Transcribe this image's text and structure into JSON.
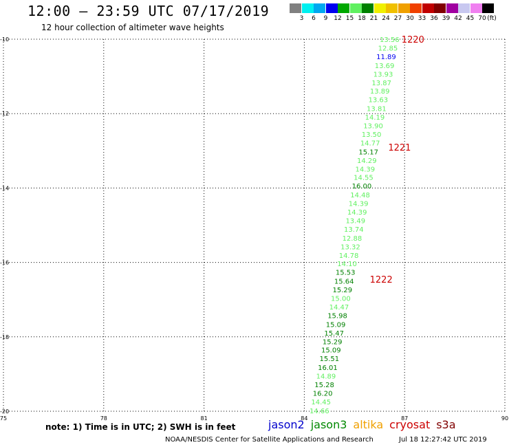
{
  "header": {
    "title": "12:00 – 23:59 UTC 07/17/2019",
    "subtitle": "12 hour collection of altimeter wave heights"
  },
  "scale": {
    "labels": [
      "3",
      "6",
      "9",
      "12",
      "15",
      "18",
      "21",
      "24",
      "27",
      "30",
      "33",
      "36",
      "39",
      "42",
      "45",
      "70"
    ],
    "unit": "(ft)",
    "colors": [
      "#808080",
      "#00f0f0",
      "#00a8f0",
      "#0000f0",
      "#00a800",
      "#60f060",
      "#008000",
      "#f0f000",
      "#f0c000",
      "#f0a000",
      "#f04000",
      "#c00000",
      "#800000",
      "#a000a0",
      "#c8c8f0",
      "#f080f0",
      "#000000"
    ]
  },
  "footer": {
    "note": "note:  1) Time is in UTC; 2) SWH is in feet",
    "legend": [
      {
        "label": "jason2",
        "color": "#0000cc"
      },
      {
        "label": "jason3",
        "color": "#008800"
      },
      {
        "label": "altika",
        "color": "#f0a000"
      },
      {
        "label": "cryosat",
        "color": "#cc0000"
      },
      {
        "label": "s3a",
        "color": "#800000"
      }
    ],
    "credit": "NOAA/NESDIS Center for Satellite Applications and Research",
    "timestamp": "Jul 18 12:27:42 UTC 2019"
  },
  "chart_data": {
    "type": "scatter",
    "title": "12:00 – 23:59 UTC 07/17/2019",
    "subtitle": "12 hour collection of altimeter wave heights",
    "x_axis": {
      "range": [
        75,
        90
      ],
      "ticks": [
        "75",
        "78",
        "81",
        "84",
        "87",
        "90"
      ]
    },
    "y_axis": {
      "range": [
        -20,
        -10
      ],
      "ticks": [
        "-10",
        "-12",
        "-14",
        "-16",
        "-18",
        "-20"
      ]
    },
    "grid": true,
    "series": [
      {
        "name": "jason3",
        "values": [
          {
            "lon": 86.55,
            "lat": -10.0,
            "swh": "13.56",
            "color": "#60f060"
          },
          {
            "lon": 86.5,
            "lat": -10.23,
            "swh": "12.85",
            "color": "#60f060"
          },
          {
            "lon": 86.45,
            "lat": -10.46,
            "swh": "11.89",
            "color": "#0000f0"
          },
          {
            "lon": 86.4,
            "lat": -10.7,
            "swh": "13.69",
            "color": "#60f060"
          },
          {
            "lon": 86.36,
            "lat": -10.93,
            "swh": "13.93",
            "color": "#60f060"
          },
          {
            "lon": 86.31,
            "lat": -11.16,
            "swh": "13.87",
            "color": "#60f060"
          },
          {
            "lon": 86.26,
            "lat": -11.39,
            "swh": "13.89",
            "color": "#60f060"
          },
          {
            "lon": 86.21,
            "lat": -11.62,
            "swh": "13.63",
            "color": "#60f060"
          },
          {
            "lon": 86.16,
            "lat": -11.86,
            "swh": "13.81",
            "color": "#60f060"
          },
          {
            "lon": 86.11,
            "lat": -12.09,
            "swh": "14.19",
            "color": "#60f060"
          },
          {
            "lon": 86.06,
            "lat": -12.32,
            "swh": "13.90",
            "color": "#60f060"
          },
          {
            "lon": 86.01,
            "lat": -12.55,
            "swh": "13.50",
            "color": "#60f060"
          },
          {
            "lon": 85.97,
            "lat": -12.78,
            "swh": "14.77",
            "color": "#60f060"
          },
          {
            "lon": 85.92,
            "lat": -13.02,
            "swh": "15.17",
            "color": "#008000"
          },
          {
            "lon": 85.87,
            "lat": -13.25,
            "swh": "14.29",
            "color": "#60f060"
          },
          {
            "lon": 85.82,
            "lat": -13.48,
            "swh": "14.39",
            "color": "#60f060"
          },
          {
            "lon": 85.77,
            "lat": -13.71,
            "swh": "14.55",
            "color": "#60f060"
          },
          {
            "lon": 85.72,
            "lat": -13.94,
            "swh": "16.00",
            "color": "#008000"
          },
          {
            "lon": 85.67,
            "lat": -14.18,
            "swh": "14.48",
            "color": "#60f060"
          },
          {
            "lon": 85.62,
            "lat": -14.41,
            "swh": "14.39",
            "color": "#60f060"
          },
          {
            "lon": 85.58,
            "lat": -14.64,
            "swh": "14.39",
            "color": "#60f060"
          },
          {
            "lon": 85.53,
            "lat": -14.87,
            "swh": "13.49",
            "color": "#60f060"
          },
          {
            "lon": 85.48,
            "lat": -15.1,
            "swh": "13.74",
            "color": "#60f060"
          },
          {
            "lon": 85.43,
            "lat": -15.34,
            "swh": "12.88",
            "color": "#60f060"
          },
          {
            "lon": 85.38,
            "lat": -15.57,
            "swh": "13.32",
            "color": "#60f060"
          },
          {
            "lon": 85.33,
            "lat": -15.8,
            "swh": "14.78",
            "color": "#60f060"
          },
          {
            "lon": 85.28,
            "lat": -16.03,
            "swh": "14.10",
            "color": "#60f060"
          },
          {
            "lon": 85.23,
            "lat": -16.26,
            "swh": "15.53",
            "color": "#008000"
          },
          {
            "lon": 85.19,
            "lat": -16.5,
            "swh": "15.64",
            "color": "#008000"
          },
          {
            "lon": 85.14,
            "lat": -16.73,
            "swh": "15.29",
            "color": "#008000"
          },
          {
            "lon": 85.09,
            "lat": -16.96,
            "swh": "15.00",
            "color": "#60f060"
          },
          {
            "lon": 85.04,
            "lat": -17.19,
            "swh": "14.47",
            "color": "#60f060"
          },
          {
            "lon": 84.99,
            "lat": -17.42,
            "swh": "15.98",
            "color": "#008000"
          },
          {
            "lon": 84.94,
            "lat": -17.66,
            "swh": "15.09",
            "color": "#008000"
          },
          {
            "lon": 84.89,
            "lat": -17.89,
            "swh": "15.47",
            "color": "#008000"
          },
          {
            "lon": 84.84,
            "lat": -18.12,
            "swh": "15.29",
            "color": "#008000"
          },
          {
            "lon": 84.8,
            "lat": -18.35,
            "swh": "15.09",
            "color": "#008000"
          },
          {
            "lon": 84.75,
            "lat": -18.58,
            "swh": "15.51",
            "color": "#008000"
          },
          {
            "lon": 84.7,
            "lat": -18.82,
            "swh": "16.01",
            "color": "#008000"
          },
          {
            "lon": 84.65,
            "lat": -19.05,
            "swh": "14.89",
            "color": "#60f060"
          },
          {
            "lon": 84.6,
            "lat": -19.28,
            "swh": "15.28",
            "color": "#008000"
          },
          {
            "lon": 84.55,
            "lat": -19.51,
            "swh": "16.20",
            "color": "#008000"
          },
          {
            "lon": 84.5,
            "lat": -19.74,
            "swh": "14.45",
            "color": "#60f060"
          },
          {
            "lon": 84.45,
            "lat": -19.98,
            "swh": "14.66",
            "color": "#60f060"
          }
        ]
      }
    ],
    "annotations": [
      {
        "label": "1220",
        "lon": 87.25,
        "lat": -10.0,
        "color": "#cc0000"
      },
      {
        "label": "1221",
        "lon": 86.85,
        "lat": -12.9,
        "color": "#cc0000"
      },
      {
        "label": "1222",
        "lon": 86.3,
        "lat": -16.45,
        "color": "#cc0000"
      }
    ]
  }
}
